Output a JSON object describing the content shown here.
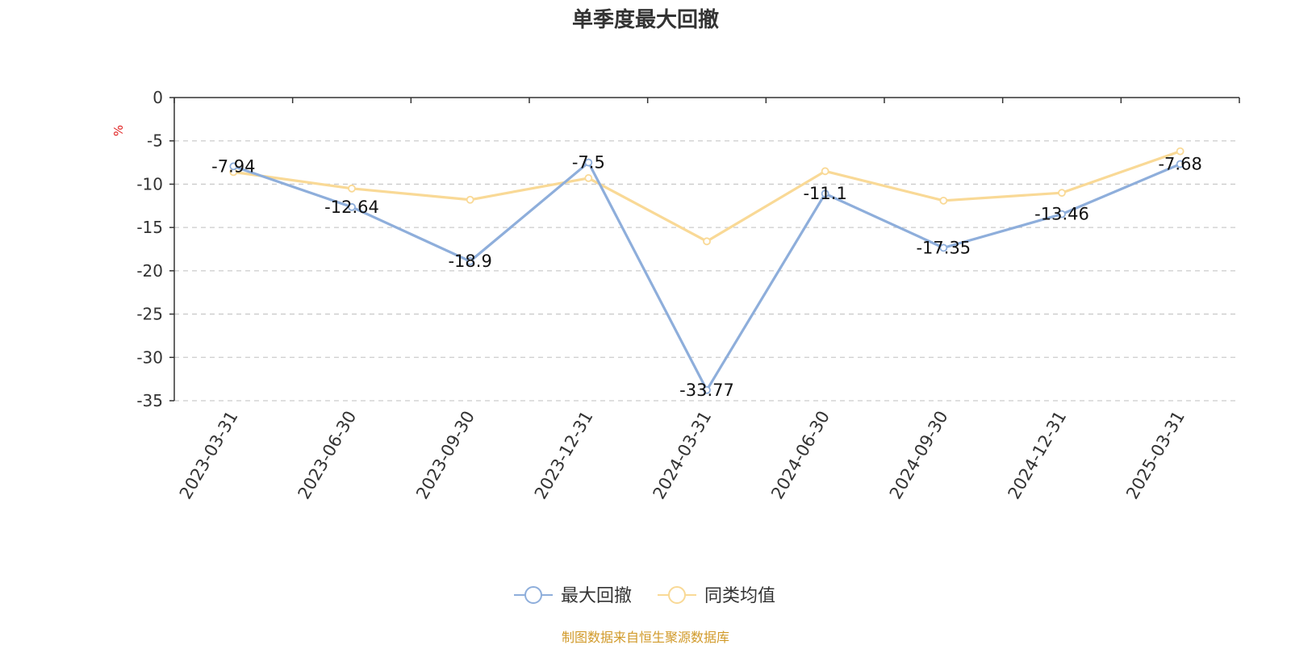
{
  "chart_data": {
    "type": "line",
    "title": "单季度最大回撤",
    "ylabel": "%",
    "ylim": [
      -35,
      0
    ],
    "yticks": [
      0,
      -5,
      -10,
      -15,
      -20,
      -25,
      -30,
      -35
    ],
    "grid": true,
    "legend_position": "bottom-center",
    "categories": [
      "2023-03-31",
      "2023-06-30",
      "2023-09-30",
      "2023-12-31",
      "2024-03-31",
      "2024-06-30",
      "2024-09-30",
      "2024-12-31",
      "2025-03-31"
    ],
    "series": [
      {
        "name": "最大回撤",
        "color": "#8eaedb",
        "values": [
          -7.94,
          -12.64,
          -18.9,
          -7.5,
          -33.77,
          -11.1,
          -17.35,
          -13.46,
          -7.68
        ],
        "labels": [
          "-7.94",
          "-12.64",
          "-18.9",
          "-7.5",
          "-33.77",
          "-11.1",
          "-17.35",
          "-13.46",
          "-7.68"
        ]
      },
      {
        "name": "同类均值",
        "color": "#f9d996",
        "values": [
          -8.6,
          -10.5,
          -11.8,
          -9.3,
          -16.6,
          -8.5,
          -11.9,
          -11.0,
          -6.2
        ]
      }
    ],
    "source_note": "制图数据来自恒生聚源数据库",
    "colors": {
      "source_note": "#d19a2a",
      "unit": "#e02020",
      "axis": "#333333",
      "grid": "#cccccc"
    }
  }
}
